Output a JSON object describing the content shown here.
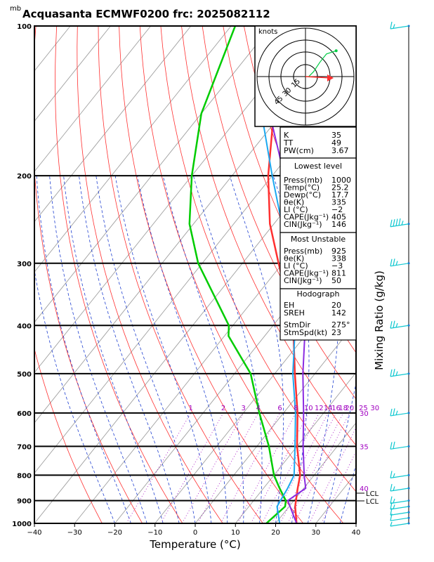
{
  "title": "Acquasanta ECMWF0200  frc: 2025082112",
  "pressure_unit": "mb",
  "hodograph_label": "knots",
  "hodograph_rings": [
    "15",
    "30",
    "45"
  ],
  "mixing_ratio_axis_label": "Mixing Ratio  (g/kg)",
  "mixing_ratio_labels": [
    "1",
    "2",
    "3",
    "4",
    "6",
    "8",
    "10",
    "12",
    "14",
    "16",
    "18",
    "20",
    "25",
    "30"
  ],
  "adiabat_labels": [
    "30",
    "35",
    "40"
  ],
  "lcl_label": "LCL",
  "colors": {
    "temperature": "#ff3030",
    "dewpoint": "#00cc00",
    "parcel": "#8a2be2",
    "wetbulb": "#1ca8f0",
    "dry_adiabat": "#ff3030",
    "moist_adiabat": "#2040d0",
    "mixing_ratio": "#a000c0",
    "isotherm": "#a0a0a0",
    "barb": "#10c8d0"
  },
  "indices": {
    "K": "35",
    "TT": "49",
    "PW(cm)": "3.67"
  },
  "index_rows": [
    {
      "label": "K",
      "value": "35"
    },
    {
      "label": "TT",
      "value": "49"
    },
    {
      "label": "PW(cm)",
      "value": "3.67"
    }
  ],
  "lowest_level": {
    "header": "Lowest level",
    "rows": [
      {
        "label": "Press(mb)",
        "value": "1000"
      },
      {
        "label": "Temp(°C)",
        "value": "25.2"
      },
      {
        "label": "Dewp(°C)",
        "value": "17.7"
      },
      {
        "label": "θe(K)",
        "value": "335"
      },
      {
        "label": "LI (°C)",
        "value": "−2"
      },
      {
        "label": "CAPE(Jkg⁻¹)",
        "value": "405"
      },
      {
        "label": "CIN(Jkg⁻¹)",
        "value": "146"
      }
    ]
  },
  "most_unstable": {
    "header": "Most Unstable",
    "rows": [
      {
        "label": "Press(mb)",
        "value": "925"
      },
      {
        "label": "θe(K)",
        "value": "338"
      },
      {
        "label": "LI (°C)",
        "value": "−3"
      },
      {
        "label": "CAPE(Jkg⁻¹)",
        "value": "811"
      },
      {
        "label": "CIN(Jkg⁻¹)",
        "value": "50"
      }
    ]
  },
  "hodograph_block": {
    "header": "Hodograph",
    "rows": [
      {
        "label": "EH",
        "value": "20"
      },
      {
        "label": "SREH",
        "value": "142"
      },
      {
        "label": "StmDir",
        "value": "275°"
      },
      {
        "label": "StmSpd(kt)",
        "value": "23"
      }
    ]
  },
  "chart_data": {
    "type": "line",
    "title": "Acquasanta ECMWF0200  frc: 2025082112",
    "xlabel": "Temperature (°C)",
    "ylabel": "mb",
    "xlim": [
      -40,
      40
    ],
    "ylim": [
      1000,
      100
    ],
    "y_scale": "log",
    "x_ticks": [
      "−40",
      "−30",
      "−20",
      "−10",
      "0",
      "10",
      "20",
      "30",
      "40"
    ],
    "y_ticks": [
      "100",
      "200",
      "300",
      "400",
      "500",
      "600",
      "700",
      "800",
      "900",
      "1000"
    ],
    "series": [
      {
        "name": "Temperature",
        "color": "#ff3030",
        "p": [
          1000,
          925,
          850,
          800,
          700,
          600,
          500,
          400,
          300,
          250,
          200,
          150,
          100
        ],
        "t": [
          25.2,
          21.5,
          18.5,
          16.5,
          10,
          3.5,
          -5,
          -15,
          -31,
          -41,
          -51,
          -62,
          -68
        ]
      },
      {
        "name": "Dewpoint",
        "color": "#00cc00",
        "p": [
          1000,
          925,
          900,
          850,
          800,
          700,
          600,
          500,
          420,
          400,
          300,
          250,
          200,
          150,
          100
        ],
        "t": [
          17.7,
          19,
          18,
          14,
          10,
          3,
          -6,
          -16,
          -29,
          -31,
          -51,
          -61,
          -70,
          -80,
          -89
        ]
      },
      {
        "name": "Parcel",
        "color": "#8a2be2",
        "p": [
          1000,
          900,
          850,
          800,
          700,
          600,
          500,
          400,
          300,
          250,
          200,
          150,
          125
        ],
        "t": [
          25.2,
          18.5,
          20.5,
          17.5,
          11.5,
          5,
          -3,
          -12,
          -26,
          -35,
          -47,
          -63,
          -71
        ]
      },
      {
        "name": "Wet-bulb",
        "color": "#1ca8f0",
        "p": [
          1000,
          925,
          850,
          800,
          700,
          600,
          500,
          400,
          300,
          250,
          200,
          150,
          125
        ],
        "t": [
          21,
          17,
          16,
          15,
          9.5,
          3,
          -5.5,
          -14.5,
          -29,
          -38,
          -50,
          -65,
          -73
        ]
      }
    ],
    "hodograph": {
      "u": [
        0,
        2,
        5,
        9,
        13,
        19
      ],
      "v": [
        0,
        0,
        3,
        9,
        14,
        16
      ],
      "storm_motion": {
        "dir": 275,
        "speed_kt": 23
      }
    },
    "wind_barbs": {
      "p": [
        1000,
        975,
        950,
        925,
        900,
        850,
        800,
        700,
        600,
        500,
        400,
        300,
        250,
        100
      ],
      "speed_kt": [
        5,
        10,
        10,
        15,
        15,
        15,
        15,
        20,
        25,
        25,
        25,
        25,
        45,
        15
      ]
    }
  }
}
